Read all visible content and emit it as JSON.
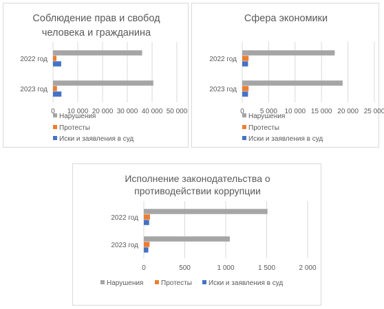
{
  "chart_data": [
    {
      "type": "bar",
      "orientation": "horizontal",
      "title": "Соблюдение прав и свобод человека и гражданина",
      "title_lines": [
        "Соблюдение прав и свобод",
        "человека и гражданина"
      ],
      "categories": [
        "2022 год",
        "2023 год"
      ],
      "series": [
        {
          "name": "Нарушения",
          "color": "#a5a5a5",
          "values": [
            36000,
            40500
          ]
        },
        {
          "name": "Протесты",
          "color": "#ed7d31",
          "values": [
            1400,
            1600
          ]
        },
        {
          "name": "Иски и заявления в суд",
          "color": "#4472c4",
          "values": [
            3300,
            3400
          ]
        }
      ],
      "xlim": [
        0,
        50000
      ],
      "x_ticks": [
        "0",
        "10 000",
        "20 000",
        "30 000",
        "40 000",
        "50 000"
      ],
      "grid": true,
      "legend": "bottom"
    },
    {
      "type": "bar",
      "orientation": "horizontal",
      "title": "Сфера экономики",
      "title_lines": [
        "Сфера экономики"
      ],
      "categories": [
        "2022 год",
        "2023 год"
      ],
      "series": [
        {
          "name": "Нарушения",
          "color": "#a5a5a5",
          "values": [
            17500,
            19000
          ]
        },
        {
          "name": "Протесты",
          "color": "#ed7d31",
          "values": [
            1200,
            1200
          ]
        },
        {
          "name": "Иски и заявления в суд",
          "color": "#4472c4",
          "values": [
            1100,
            1100
          ]
        }
      ],
      "xlim": [
        0,
        25000
      ],
      "x_ticks": [
        "0",
        "5 000",
        "10 000",
        "15 000",
        "20 000",
        "25 000"
      ],
      "grid": true,
      "legend": "bottom"
    },
    {
      "type": "bar",
      "orientation": "horizontal",
      "title": "Исполнение законодательства о противодействии коррупции",
      "title_lines": [
        "Исполнение законодательства о",
        "противодействии коррупции"
      ],
      "categories": [
        "2022 год",
        "2023 год"
      ],
      "series": [
        {
          "name": "Нарушения",
          "color": "#a5a5a5",
          "values": [
            1510,
            1050
          ]
        },
        {
          "name": "Протесты",
          "color": "#ed7d31",
          "values": [
            75,
            70
          ]
        },
        {
          "name": "Иски и заявления в суд",
          "color": "#4472c4",
          "values": [
            65,
            55
          ]
        }
      ],
      "xlim": [
        0,
        2000
      ],
      "x_ticks": [
        "0",
        "500",
        "1 000",
        "1 500",
        "2 000"
      ],
      "grid": true,
      "legend": "bottom"
    }
  ]
}
